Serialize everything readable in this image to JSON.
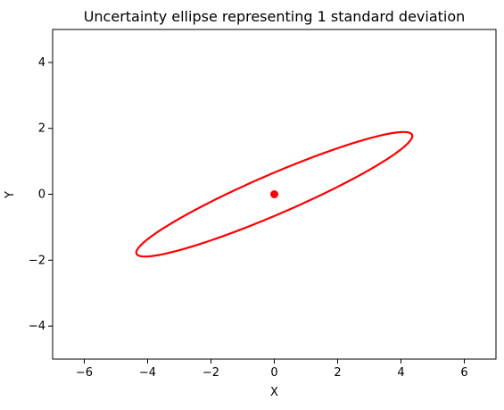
{
  "chart_data": {
    "type": "scatter",
    "title": "Uncertainty ellipse representing 1 standard deviation",
    "xlabel": "X",
    "ylabel": "Y",
    "xlim": [
      -7,
      7
    ],
    "ylim": [
      -5,
      5
    ],
    "xticks": [
      -6,
      -4,
      -2,
      0,
      2,
      4,
      6
    ],
    "yticks": [
      -4,
      -2,
      0,
      2,
      4
    ],
    "xtick_labels": [
      "−6",
      "−4",
      "−2",
      "0",
      "2",
      "4",
      "6"
    ],
    "ytick_labels": [
      "−4",
      "−2",
      "0",
      "2",
      "4"
    ],
    "grid": false,
    "legend": "none",
    "series": [
      {
        "kind": "point",
        "x": [
          0
        ],
        "y": [
          0
        ],
        "color": "#ff0000"
      },
      {
        "kind": "ellipse",
        "center": [
          0,
          0
        ],
        "semi_axes": [
          4.71,
          0.61
        ],
        "angle_deg": 22.5,
        "color": "#ff0000"
      }
    ]
  }
}
